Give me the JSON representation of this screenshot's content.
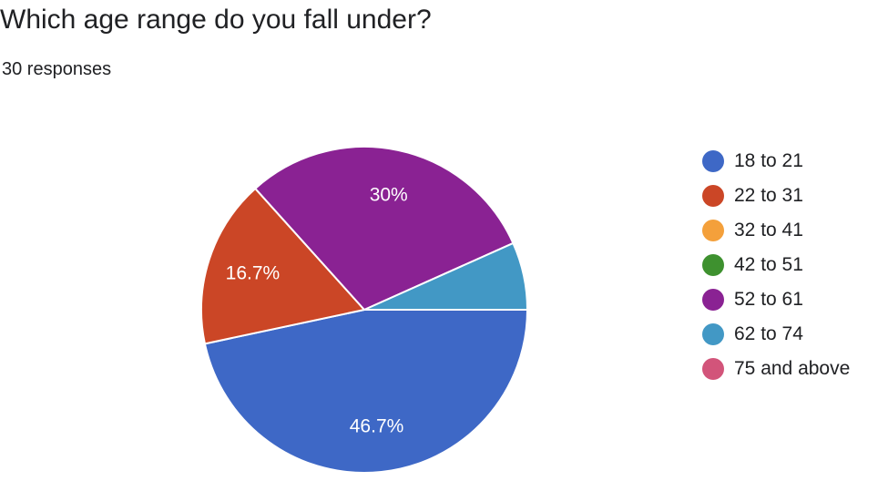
{
  "title": "Which age range do you fall under?",
  "subtitle": "30 responses",
  "chart_data": {
    "type": "pie",
    "categories": [
      "18 to 21",
      "22 to 31",
      "32 to 41",
      "42 to 51",
      "52 to 61",
      "62 to 74",
      "75 and above"
    ],
    "values": [
      46.7,
      16.7,
      0,
      0,
      30,
      6.7,
      0
    ],
    "data_labels": [
      "46.7%",
      "16.7%",
      "",
      "",
      "30%",
      "",
      ""
    ],
    "colors": [
      "#3e68c6",
      "#cb4626",
      "#f4a03b",
      "#3e912f",
      "#8a2293",
      "#4298c5",
      "#d2547a"
    ],
    "legend_position": "right"
  }
}
